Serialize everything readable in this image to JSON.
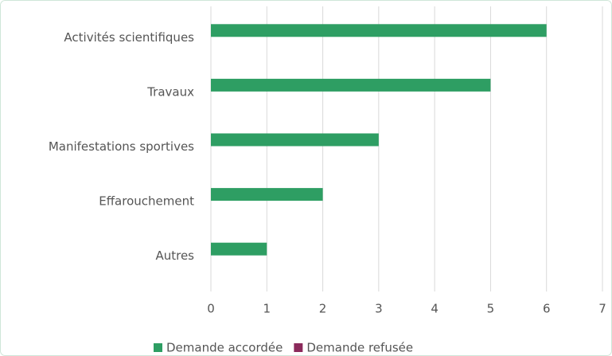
{
  "chart_data": {
    "type": "bar",
    "orientation": "horizontal",
    "categories": [
      "Activités scientifiques",
      "Travaux",
      "Manifestations sportives",
      "Effarouchement",
      "Autres"
    ],
    "series": [
      {
        "name": "Demande accordée",
        "color": "#2e9e63",
        "values": [
          6,
          5,
          3,
          2,
          1
        ]
      },
      {
        "name": "Demande refusée",
        "color": "#8b2a5b",
        "values": [
          0,
          0,
          0,
          0,
          0
        ]
      }
    ],
    "xlim": [
      0,
      7
    ],
    "xticks": [
      0,
      1,
      2,
      3,
      4,
      5,
      6,
      7
    ],
    "grid": true,
    "legend": "bottom"
  }
}
